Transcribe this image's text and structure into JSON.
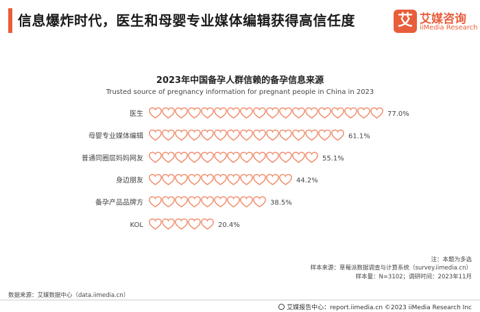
{
  "header": {
    "title": "信息爆炸时代，医生和母婴专业媒体编辑获得高信任度"
  },
  "brand": {
    "logo_glyph": "艾",
    "name": "艾媒咨询",
    "name_en": "iiMedia Research"
  },
  "chart_data": {
    "type": "bar",
    "title": "2023年中国备孕人群信赖的备孕信息来源",
    "subtitle": "Trusted source of pregnancy information for pregnant people in China in 2023",
    "categories": [
      "医生",
      "母婴专业媒体编辑",
      "普通同圈层妈妈网友",
      "身边朋友",
      "备孕产品品牌方",
      "KOL"
    ],
    "values": [
      77.0,
      61.1,
      55.1,
      44.2,
      38.5,
      20.4
    ],
    "value_labels": [
      "77.0%",
      "61.1%",
      "55.1%",
      "44.2%",
      "38.5%",
      "20.4%"
    ],
    "unit": "%",
    "xlim": [
      0,
      100
    ],
    "marker": "heart-outline",
    "color": "#f08c6a",
    "grid": false
  },
  "notes": {
    "note": "注：本题为多选",
    "sample_source": "样本来源：草莓派数据调查与计算系统（survey.iimedia.cn）",
    "sample_info": "样本量：N=3102；调研时间：2023年11月",
    "data_source": "数据来源：艾媒数据中心（data.iimedia.cn）"
  },
  "footer": {
    "text": "艾媒报告中心：report.iimedia.cn  ©2023  iiMedia Research  Inc"
  }
}
